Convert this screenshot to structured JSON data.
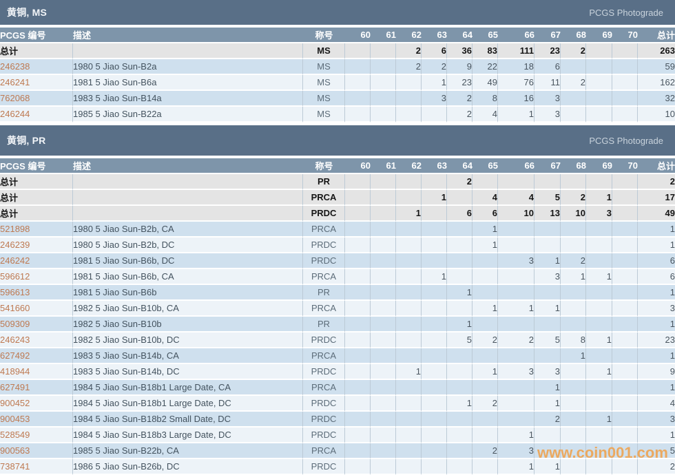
{
  "watermark": "www.coin001.com",
  "columns": [
    "PCGS 编号",
    "描述",
    "称号",
    "60",
    "61",
    "62",
    "63",
    "64",
    "65",
    "66",
    "67",
    "68",
    "69",
    "70",
    "总计"
  ],
  "sections": [
    {
      "title": "黄铜, MS",
      "photograde_label": "PCGS Photograde",
      "total_rows": [
        {
          "label": "总计",
          "desc": "",
          "designation": "MS",
          "grades": [
            "",
            "",
            "2",
            "6",
            "36",
            "83",
            "111",
            "23",
            "2",
            "",
            ""
          ],
          "total": "263"
        }
      ],
      "rows": [
        {
          "number": "246238",
          "desc": "1980 5 Jiao Sun-B2a",
          "designation": "MS",
          "grades": [
            "",
            "",
            "2",
            "2",
            "9",
            "22",
            "18",
            "6",
            "",
            "",
            ""
          ],
          "total": "59"
        },
        {
          "number": "246241",
          "desc": "1981 5 Jiao Sun-B6a",
          "designation": "MS",
          "grades": [
            "",
            "",
            "",
            "1",
            "23",
            "49",
            "76",
            "11",
            "2",
            "",
            ""
          ],
          "total": "162"
        },
        {
          "number": "762068",
          "desc": "1983 5 Jiao Sun-B14a",
          "designation": "MS",
          "grades": [
            "",
            "",
            "",
            "3",
            "2",
            "8",
            "16",
            "3",
            "",
            "",
            ""
          ],
          "total": "32"
        },
        {
          "number": "246244",
          "desc": "1985 5 Jiao Sun-B22a",
          "designation": "MS",
          "grades": [
            "",
            "",
            "",
            "",
            "2",
            "4",
            "1",
            "3",
            "",
            "",
            ""
          ],
          "total": "10"
        }
      ]
    },
    {
      "title": "黄铜, PR",
      "photograde_label": "PCGS Photograde",
      "total_rows": [
        {
          "label": "总计",
          "desc": "",
          "designation": "PR",
          "grades": [
            "",
            "",
            "",
            "",
            "2",
            "",
            "",
            "",
            "",
            "",
            ""
          ],
          "total": "2"
        },
        {
          "label": "总计",
          "desc": "",
          "designation": "PRCA",
          "grades": [
            "",
            "",
            "",
            "1",
            "",
            "4",
            "4",
            "5",
            "2",
            "1",
            ""
          ],
          "total": "17"
        },
        {
          "label": "总计",
          "desc": "",
          "designation": "PRDC",
          "grades": [
            "",
            "",
            "1",
            "",
            "6",
            "6",
            "10",
            "13",
            "10",
            "3",
            ""
          ],
          "total": "49"
        }
      ],
      "rows": [
        {
          "number": "521898",
          "desc": "1980 5 Jiao Sun-B2b, CA",
          "designation": "PRCA",
          "grades": [
            "",
            "",
            "",
            "",
            "",
            "1",
            "",
            "",
            "",
            "",
            ""
          ],
          "total": "1"
        },
        {
          "number": "246239",
          "desc": "1980 5 Jiao Sun-B2b, DC",
          "designation": "PRDC",
          "grades": [
            "",
            "",
            "",
            "",
            "",
            "1",
            "",
            "",
            "",
            "",
            ""
          ],
          "total": "1"
        },
        {
          "number": "246242",
          "desc": "1981 5 Jiao Sun-B6b, DC",
          "designation": "PRDC",
          "grades": [
            "",
            "",
            "",
            "",
            "",
            "",
            "3",
            "1",
            "2",
            "",
            ""
          ],
          "total": "6"
        },
        {
          "number": "596612",
          "desc": "1981 5 Jiao Sun-B6b, CA",
          "designation": "PRCA",
          "grades": [
            "",
            "",
            "",
            "1",
            "",
            "",
            "",
            "3",
            "1",
            "1",
            ""
          ],
          "total": "6"
        },
        {
          "number": "596613",
          "desc": "1981 5 Jiao Sun-B6b",
          "designation": "PR",
          "grades": [
            "",
            "",
            "",
            "",
            "1",
            "",
            "",
            "",
            "",
            "",
            ""
          ],
          "total": "1"
        },
        {
          "number": "541660",
          "desc": "1982 5 Jiao Sun-B10b, CA",
          "designation": "PRCA",
          "grades": [
            "",
            "",
            "",
            "",
            "",
            "1",
            "1",
            "1",
            "",
            "",
            ""
          ],
          "total": "3"
        },
        {
          "number": "509309",
          "desc": "1982 5 Jiao Sun-B10b",
          "designation": "PR",
          "grades": [
            "",
            "",
            "",
            "",
            "1",
            "",
            "",
            "",
            "",
            "",
            ""
          ],
          "total": "1"
        },
        {
          "number": "246243",
          "desc": "1982 5 Jiao Sun-B10b, DC",
          "designation": "PRDC",
          "grades": [
            "",
            "",
            "",
            "",
            "5",
            "2",
            "2",
            "5",
            "8",
            "1",
            ""
          ],
          "total": "23"
        },
        {
          "number": "627492",
          "desc": "1983 5 Jiao Sun-B14b, CA",
          "designation": "PRCA",
          "grades": [
            "",
            "",
            "",
            "",
            "",
            "",
            "",
            "",
            "1",
            "",
            ""
          ],
          "total": "1"
        },
        {
          "number": "418944",
          "desc": "1983 5 Jiao Sun-B14b, DC",
          "designation": "PRDC",
          "grades": [
            "",
            "",
            "1",
            "",
            "",
            "1",
            "3",
            "3",
            "",
            "1",
            ""
          ],
          "total": "9"
        },
        {
          "number": "627491",
          "desc": "1984 5 Jiao Sun-B18b1 Large Date, CA",
          "designation": "PRCA",
          "grades": [
            "",
            "",
            "",
            "",
            "",
            "",
            "",
            "1",
            "",
            "",
            ""
          ],
          "total": "1"
        },
        {
          "number": "900452",
          "desc": "1984 5 Jiao Sun-B18b1 Large Date, DC",
          "designation": "PRDC",
          "grades": [
            "",
            "",
            "",
            "",
            "1",
            "2",
            "",
            "1",
            "",
            "",
            ""
          ],
          "total": "4"
        },
        {
          "number": "900453",
          "desc": "1984 5 Jiao Sun-B18b2 Small Date, DC",
          "designation": "PRDC",
          "grades": [
            "",
            "",
            "",
            "",
            "",
            "",
            "",
            "2",
            "",
            "1",
            ""
          ],
          "total": "3"
        },
        {
          "number": "528549",
          "desc": "1984 5 Jiao Sun-B18b3 Large Date, DC",
          "designation": "PRDC",
          "grades": [
            "",
            "",
            "",
            "",
            "",
            "",
            "1",
            "",
            "",
            "",
            ""
          ],
          "total": "1"
        },
        {
          "number": "900563",
          "desc": "1985 5 Jiao Sun-B22b, CA",
          "designation": "PRCA",
          "grades": [
            "",
            "",
            "",
            "",
            "",
            "2",
            "3",
            "",
            "",
            "",
            ""
          ],
          "total": "5"
        },
        {
          "number": "738741",
          "desc": "1986 5 Jiao Sun-B26b, DC",
          "designation": "PRDC",
          "grades": [
            "",
            "",
            "",
            "",
            "",
            "",
            "1",
            "1",
            "",
            "",
            ""
          ],
          "total": "2"
        }
      ]
    }
  ],
  "colors": {
    "band_bg": "#596F87",
    "header_bg": "#7E95AA",
    "header_text": "#FFFFFF",
    "band_title_text": "#F2F5F8",
    "photograde_text": "#C9D3DC",
    "total_row_bg": "#E4E4E4",
    "total_text": "#151515",
    "row_blue": "#CFE0EE",
    "row_light": "#EDF3F8",
    "cell_border": "#BCCAD6",
    "link": "#BE7951",
    "description_text": "#43525E",
    "designation_text": "#5C6C79",
    "count_text": "#49555F",
    "watermark": "#F39C3D"
  }
}
